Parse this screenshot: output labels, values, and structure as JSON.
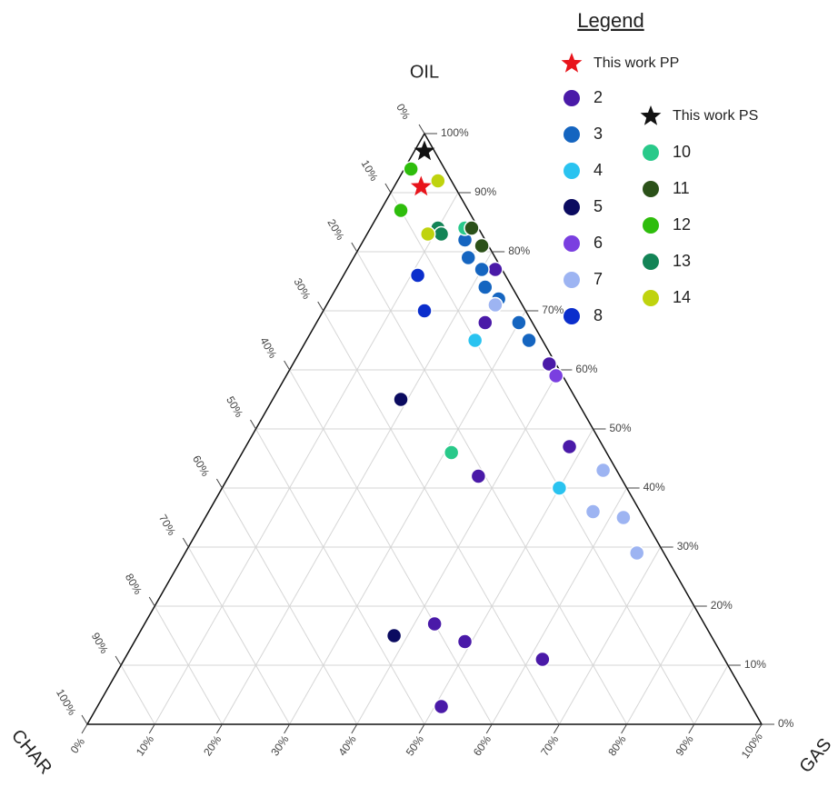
{
  "chart_data": {
    "type": "ternary",
    "legend_title": "Legend",
    "oil_label": "OIL",
    "gas_label": "GAS",
    "char_label": "CHAR",
    "grid": true,
    "oil_ticks": [
      {
        "value": 0,
        "label": "0%"
      },
      {
        "value": 10,
        "label": "10%"
      },
      {
        "value": 20,
        "label": "20%"
      },
      {
        "value": 30,
        "label": "30%"
      },
      {
        "value": 40,
        "label": "40%"
      },
      {
        "value": 50,
        "label": "50%"
      },
      {
        "value": 60,
        "label": "60%"
      },
      {
        "value": 70,
        "label": "70%"
      },
      {
        "value": 80,
        "label": "80%"
      },
      {
        "value": 90,
        "label": "90%"
      },
      {
        "value": 100,
        "label": "100%"
      }
    ],
    "gas_ticks": [
      {
        "value": 0,
        "label": "0%"
      },
      {
        "value": 10,
        "label": "10%"
      },
      {
        "value": 20,
        "label": "20%"
      },
      {
        "value": 30,
        "label": "30%"
      },
      {
        "value": 40,
        "label": "40%"
      },
      {
        "value": 50,
        "label": "50%"
      },
      {
        "value": 60,
        "label": "60%"
      },
      {
        "value": 70,
        "label": "70%"
      },
      {
        "value": 80,
        "label": "80%"
      },
      {
        "value": 90,
        "label": "90%"
      },
      {
        "value": 100,
        "label": "100%"
      }
    ],
    "char_ticks": [
      {
        "value": 0,
        "label": "0%"
      },
      {
        "value": 10,
        "label": "10%"
      },
      {
        "value": 20,
        "label": "20%"
      },
      {
        "value": 30,
        "label": "30%"
      },
      {
        "value": 40,
        "label": "40%"
      },
      {
        "value": 50,
        "label": "50%"
      },
      {
        "value": 60,
        "label": "60%"
      },
      {
        "value": 70,
        "label": "70%"
      },
      {
        "value": 80,
        "label": "80%"
      },
      {
        "value": 90,
        "label": "90%"
      },
      {
        "value": 100,
        "label": "100%"
      }
    ],
    "series": [
      {
        "name": "This work PP",
        "marker": "star",
        "color": "#e8141b",
        "oil": [
          91
        ],
        "gas": [
          4
        ],
        "char": [
          5
        ]
      },
      {
        "name": "2",
        "marker": "circle",
        "color": "#4a1aa8",
        "oil": [
          77,
          68,
          61,
          47,
          42,
          17,
          14,
          11,
          3
        ],
        "gas": [
          22,
          25,
          38,
          48,
          37,
          43,
          49,
          62,
          51
        ],
        "char": [
          1,
          7,
          1,
          5,
          21,
          40,
          37,
          27,
          46
        ]
      },
      {
        "name": "3",
        "marker": "circle",
        "color": "#1565c0",
        "oil": [
          82,
          79,
          77,
          74,
          72,
          68,
          65
        ],
        "gas": [
          15,
          17,
          20,
          22,
          25,
          30,
          33
        ],
        "char": [
          3,
          4,
          3,
          4,
          3,
          2,
          2
        ]
      },
      {
        "name": "4",
        "marker": "circle",
        "color": "#2ac3f0",
        "oil": [
          65,
          40
        ],
        "gas": [
          25,
          50
        ],
        "char": [
          10,
          10
        ]
      },
      {
        "name": "5",
        "marker": "circle",
        "color": "#0b0b60",
        "oil": [
          55,
          15
        ],
        "gas": [
          19,
          38
        ],
        "char": [
          26,
          47
        ]
      },
      {
        "name": "6",
        "marker": "circle",
        "color": "#7a3fe0",
        "oil": [
          59
        ],
        "gas": [
          40
        ],
        "char": [
          1
        ]
      },
      {
        "name": "7",
        "marker": "circle",
        "color": "#9db4f2",
        "oil": [
          43,
          36,
          35,
          29,
          71
        ],
        "gas": [
          55,
          57,
          62,
          67,
          25
        ],
        "char": [
          2,
          7,
          3,
          4,
          4
        ]
      },
      {
        "name": "8",
        "marker": "circle",
        "color": "#0b2ecc",
        "oil": [
          76,
          70
        ],
        "gas": [
          11,
          15
        ],
        "char": [
          13,
          15
        ]
      },
      {
        "name": "This work PS",
        "marker": "star",
        "color": "#111111",
        "oil": [
          97
        ],
        "gas": [
          1.5
        ],
        "char": [
          1.5
        ]
      },
      {
        "name": "10",
        "marker": "circle",
        "color": "#29c98a",
        "oil": [
          46,
          84
        ],
        "gas": [
          31,
          14
        ],
        "char": [
          23,
          2
        ]
      },
      {
        "name": "11",
        "marker": "circle",
        "color": "#2b5119",
        "oil": [
          84,
          81
        ],
        "gas": [
          15,
          18
        ],
        "char": [
          1,
          1
        ]
      },
      {
        "name": "12",
        "marker": "circle",
        "color": "#2ebd0c",
        "oil": [
          94,
          87
        ],
        "gas": [
          1,
          3
        ],
        "char": [
          5,
          10
        ]
      },
      {
        "name": "13",
        "marker": "circle",
        "color": "#138456",
        "oil": [
          84,
          83
        ],
        "gas": [
          10,
          11
        ],
        "char": [
          6,
          6
        ]
      },
      {
        "name": "14",
        "marker": "circle",
        "color": "#bfd30e",
        "oil": [
          92,
          83
        ],
        "gas": [
          6,
          9
        ],
        "char": [
          2,
          8
        ]
      }
    ]
  }
}
